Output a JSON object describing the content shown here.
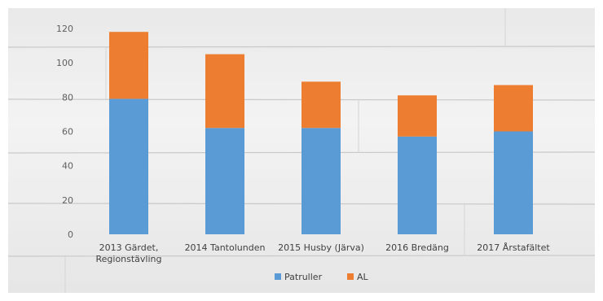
{
  "chart_data": {
    "type": "bar",
    "stacked": true,
    "categories": [
      [
        "2013 Gärdet,",
        "Regionstävling"
      ],
      [
        "2014 Tantolunden"
      ],
      [
        "2015 Husby (Järva)"
      ],
      [
        "2016 Bredäng"
      ],
      [
        "2017 Årstafältet"
      ]
    ],
    "series": [
      {
        "name": "Patruller",
        "values": [
          79,
          62,
          62,
          57,
          60
        ],
        "color": "#5b9bd5"
      },
      {
        "name": "AL",
        "values": [
          39,
          43,
          27,
          24,
          27
        ],
        "color": "#ed7d31"
      }
    ],
    "y_ticks": [
      "0",
      "20",
      "40",
      "60",
      "80",
      "100",
      "120"
    ],
    "ylim": [
      0,
      120
    ],
    "legend_position": "bottom"
  }
}
